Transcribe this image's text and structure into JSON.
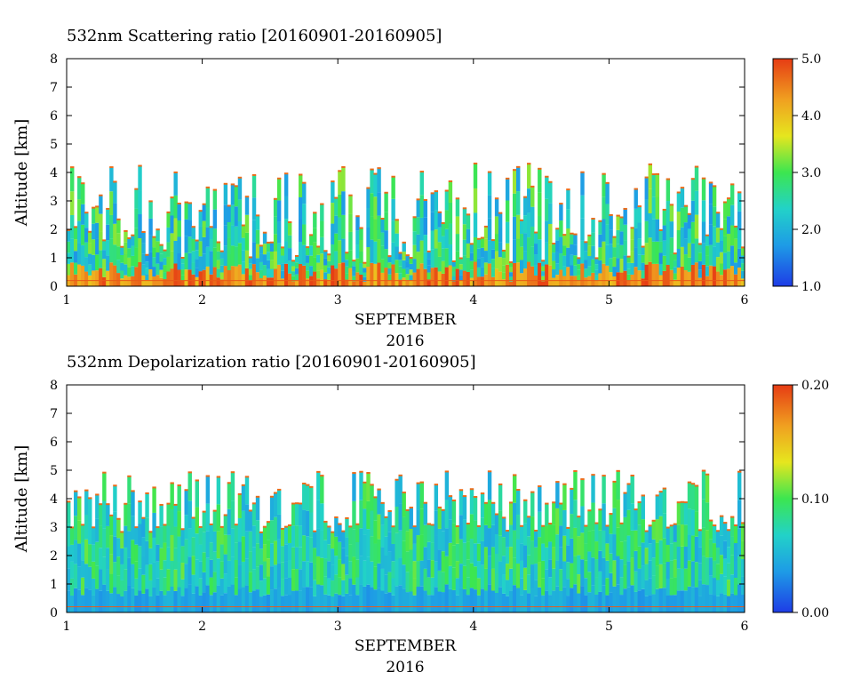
{
  "chart_data": [
    {
      "type": "heatmap",
      "title": "532nm Scattering ratio [20160901-20160905]",
      "xlabel": "SEPTEMBER",
      "xlabel2": "2016",
      "ylabel": "Altitude [km]",
      "xlim": [
        1,
        6
      ],
      "ylim": [
        0,
        8
      ],
      "x_ticks": [
        "1",
        "2",
        "3",
        "4",
        "5",
        "6"
      ],
      "y_ticks": [
        "0",
        "1",
        "2",
        "3",
        "4",
        "5",
        "6",
        "7",
        "8"
      ],
      "colorbar": {
        "min": 1.0,
        "max": 5.0,
        "ticks": [
          "1.0",
          "2.0",
          "3.0",
          "4.0",
          "5.0"
        ]
      }
    },
    {
      "type": "heatmap",
      "title": "532nm Depolarization ratio [20160901-20160905]",
      "xlabel": "SEPTEMBER",
      "xlabel2": "2016",
      "ylabel": "Altitude [km]",
      "xlim": [
        1,
        6
      ],
      "ylim": [
        0,
        8
      ],
      "x_ticks": [
        "1",
        "2",
        "3",
        "4",
        "5",
        "6"
      ],
      "y_ticks": [
        "0",
        "1",
        "2",
        "3",
        "4",
        "5",
        "6",
        "7",
        "8"
      ],
      "colorbar": {
        "min": 0.0,
        "max": 0.2,
        "ticks": [
          "0.00",
          "0.10",
          "0.20"
        ]
      }
    }
  ],
  "colors": {
    "scale": [
      "#1e3ce6",
      "#1e9be6",
      "#22d2c8",
      "#3ce650",
      "#e6e61e",
      "#f0a020",
      "#e63c14"
    ]
  }
}
